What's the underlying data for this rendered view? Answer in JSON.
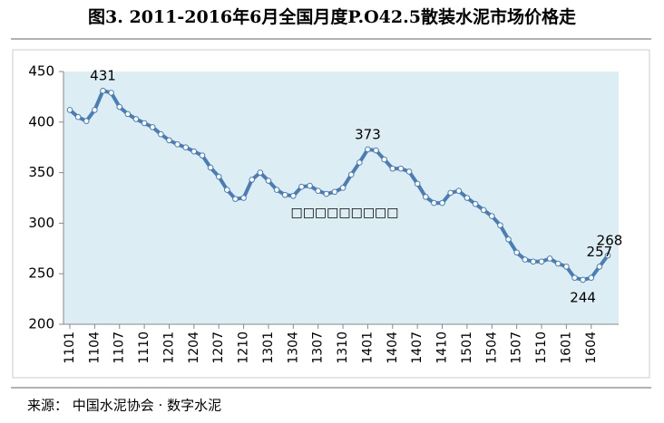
{
  "chart_data": {
    "type": "line",
    "title": "图3.   2011-2016年6月全国月度P.O42.5散装水泥市场价格走",
    "source": "来源： 中国水泥协会 · 数字水泥",
    "annotation": "□□□□□□□□□",
    "categories": [
      "1101",
      null,
      null,
      "1104",
      null,
      null,
      "1107",
      null,
      null,
      "1110",
      null,
      null,
      "1201",
      null,
      null,
      "1204",
      null,
      null,
      "1207",
      null,
      null,
      "1210",
      null,
      null,
      "1301",
      null,
      null,
      "1304",
      null,
      null,
      "1307",
      null,
      null,
      "1310",
      null,
      null,
      "1401",
      null,
      null,
      "1404",
      null,
      null,
      "1407",
      null,
      null,
      "1410",
      null,
      null,
      "1501",
      null,
      null,
      "1504",
      null,
      null,
      "1507",
      null,
      null,
      "1510",
      null,
      null,
      "1601",
      null,
      null,
      "1604",
      null,
      null
    ],
    "series": [
      {
        "color": "#4a7db5",
        "values": [
          412,
          405,
          401,
          412,
          431,
          429,
          415,
          408,
          403,
          399,
          395,
          388,
          382,
          378,
          375,
          371,
          367,
          355,
          346,
          333,
          324,
          325,
          343,
          350,
          342,
          333,
          328,
          327,
          336,
          337,
          332,
          329,
          331,
          335,
          348,
          360,
          373,
          372,
          363,
          354,
          354,
          351,
          339,
          326,
          320,
          320,
          330,
          332,
          325,
          319,
          313,
          307,
          298,
          284,
          271,
          264,
          262,
          262,
          265,
          260,
          257,
          246,
          244,
          246,
          257,
          268
        ]
      }
    ],
    "data_labels": [
      4,
      36,
      62,
      64,
      65
    ],
    "ylim": [
      200,
      450
    ],
    "yticks": [
      200,
      250,
      300,
      350,
      400,
      450
    ],
    "plot_background": "#dcedf4"
  }
}
